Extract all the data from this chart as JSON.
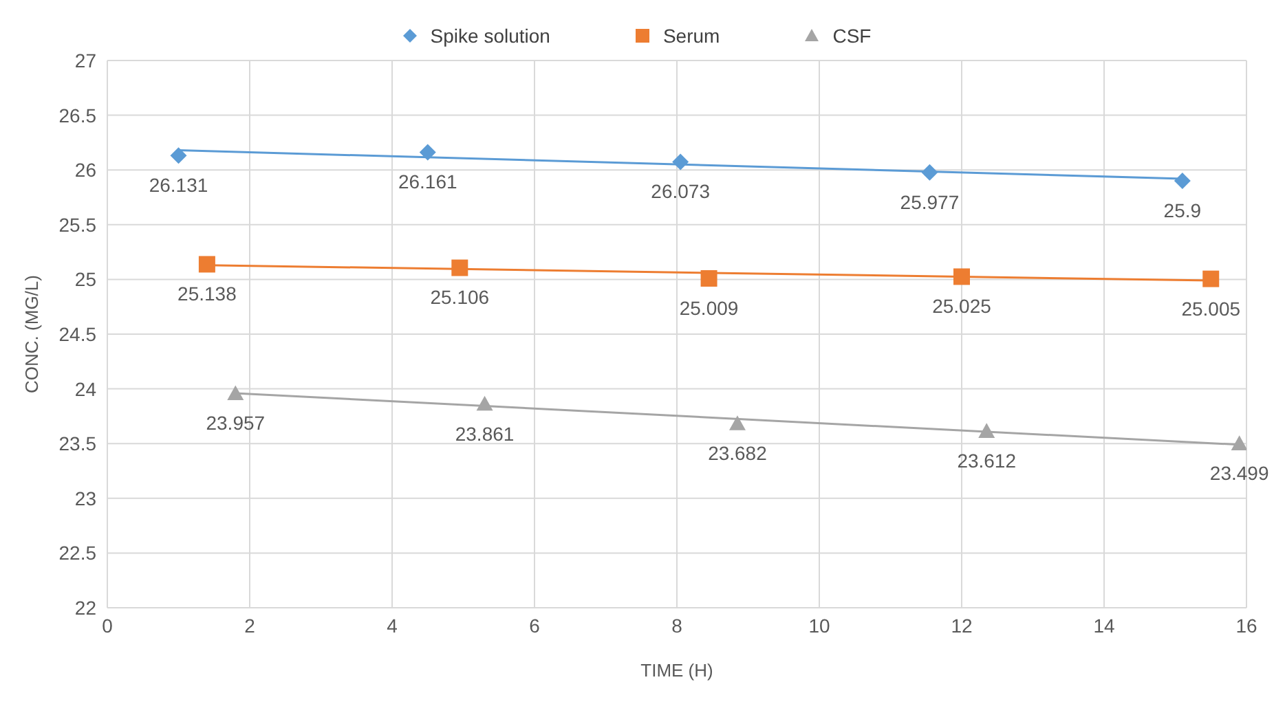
{
  "chart_data": {
    "type": "scatter",
    "xlabel": "TIME (H)",
    "ylabel": "CONC. (MG/L)",
    "xlim": [
      0,
      16
    ],
    "xticks": [
      0,
      2,
      4,
      6,
      8,
      10,
      12,
      14,
      16
    ],
    "ylim": [
      22,
      27
    ],
    "yticks": [
      22,
      22.5,
      23,
      23.5,
      24,
      24.5,
      25,
      25.5,
      26,
      26.5,
      27
    ],
    "grid": true,
    "legend": "top",
    "series": [
      {
        "name": "Spike solution",
        "color": "#5b9bd5",
        "marker": "diamond",
        "x": [
          1,
          4.5,
          8.05,
          11.55,
          15.1
        ],
        "values": [
          26.131,
          26.161,
          26.073,
          25.977,
          25.9
        ],
        "value_labels": [
          "26.131",
          "26.161",
          "26.073",
          "25.977",
          "25.9"
        ]
      },
      {
        "name": "Serum",
        "color": "#ed7d31",
        "marker": "square",
        "x": [
          1.4,
          4.95,
          8.45,
          12,
          15.5
        ],
        "values": [
          25.138,
          25.106,
          25.009,
          25.025,
          25.005
        ],
        "value_labels": [
          "25.138",
          "25.106",
          "25.009",
          "25.025",
          "25.005"
        ]
      },
      {
        "name": "CSF",
        "color": "#a5a5a5",
        "marker": "triangle",
        "x": [
          1.8,
          5.3,
          8.85,
          12.35,
          15.9
        ],
        "values": [
          23.957,
          23.861,
          23.682,
          23.612,
          23.499
        ],
        "value_labels": [
          "23.957",
          "23.861",
          "23.682",
          "23.612",
          "23.499"
        ]
      },
      {
        "type": "line",
        "color": "#5b9bd5",
        "marker": "none",
        "line_style": "solid",
        "x": [
          1,
          15.1
        ],
        "values": [
          26.18,
          25.92
        ]
      },
      {
        "type": "line",
        "color": "#ed7d31",
        "marker": "none",
        "line_style": "solid",
        "x": [
          1.4,
          15.5
        ],
        "values": [
          25.13,
          24.99
        ]
      },
      {
        "type": "line",
        "color": "#a5a5a5",
        "marker": "none",
        "line_style": "solid",
        "x": [
          1.8,
          15.9
        ],
        "values": [
          23.96,
          23.49
        ]
      }
    ]
  }
}
